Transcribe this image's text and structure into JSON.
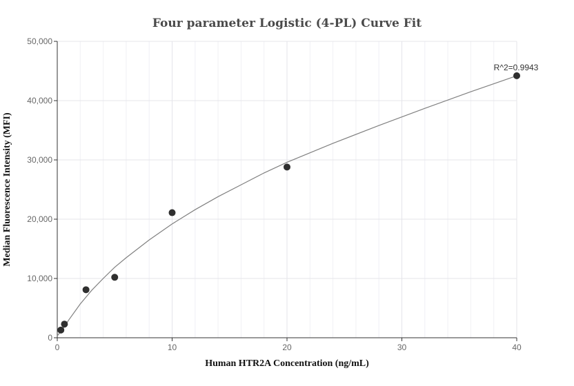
{
  "chart_data": {
    "type": "scatter",
    "title": "Four parameter Logistic (4-PL) Curve Fit",
    "xlabel": "Human HTR2A Concentration (ng/mL)",
    "ylabel": "Median Fluorescence Intensity (MFI)",
    "xlim": [
      0,
      40
    ],
    "ylim": [
      0,
      50000
    ],
    "x_ticks": [
      0,
      10,
      20,
      30,
      40
    ],
    "x_tick_labels": [
      "0",
      "10",
      "20",
      "30",
      "40"
    ],
    "y_ticks": [
      0,
      10000,
      20000,
      30000,
      40000,
      50000
    ],
    "y_tick_labels": [
      "0",
      "10,000",
      "20,000",
      "30,000",
      "40,000",
      "50,000"
    ],
    "grid": true,
    "series": [
      {
        "x": [
          0.3125,
          0.625,
          2.5,
          5,
          10,
          20,
          40
        ],
        "y": [
          1300,
          2300,
          8100,
          10200,
          21100,
          28800,
          44200
        ],
        "color": "#2f2f2f"
      }
    ],
    "fit_curve": {
      "model": "4PL",
      "x": [
        0,
        0.5,
        1,
        2,
        3,
        4,
        5,
        6,
        8,
        10,
        12,
        14,
        16,
        18,
        20,
        24,
        28,
        32,
        36,
        40
      ],
      "y": [
        300,
        1550,
        3000,
        5700,
        8000,
        10000,
        11900,
        13500,
        16500,
        19200,
        21600,
        23800,
        25800,
        27800,
        29600,
        32800,
        35800,
        38700,
        41500,
        44200
      ],
      "color": "#808080"
    },
    "annotations": [
      {
        "text": "R^2=0.9943",
        "x": 40,
        "y": 44200
      }
    ]
  }
}
